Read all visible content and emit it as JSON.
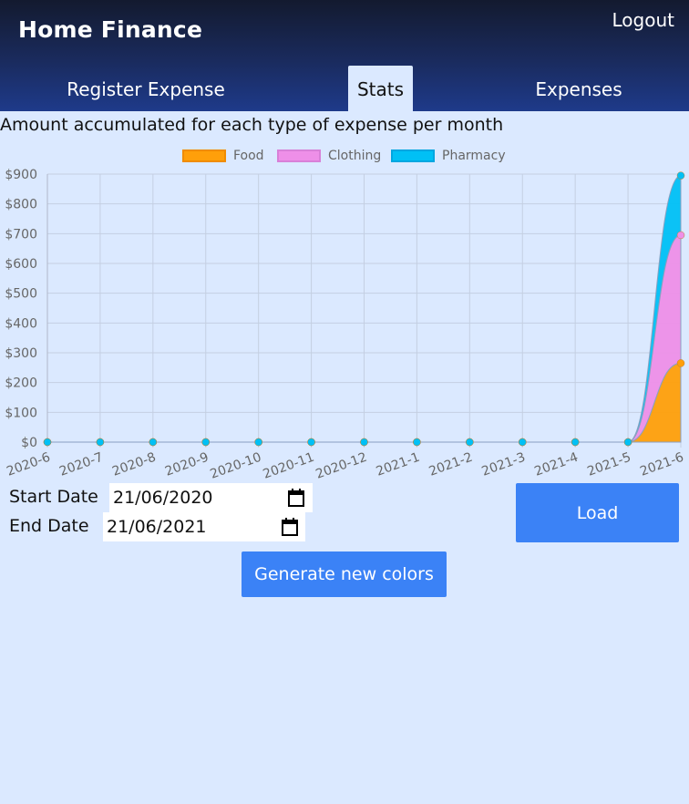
{
  "header": {
    "title": "Home Finance",
    "logout_label": "Logout"
  },
  "tabs": [
    {
      "label": "Register Expense",
      "active": false
    },
    {
      "label": "Stats",
      "active": true
    },
    {
      "label": "Expenses",
      "active": false
    }
  ],
  "chart_heading": "Amount accumulated for each type of expense per month",
  "colors": {
    "food": "#ff9f0a",
    "clothing": "#ee8fe8",
    "pharmacy": "#00c0f5",
    "accent": "#3b82f6"
  },
  "chart_data": {
    "type": "area",
    "stacked": true,
    "categories": [
      "2020-6",
      "2020-7",
      "2020-8",
      "2020-9",
      "2020-10",
      "2020-11",
      "2020-12",
      "2021-1",
      "2021-2",
      "2021-3",
      "2021-4",
      "2021-5",
      "2021-6"
    ],
    "series": [
      {
        "name": "Food",
        "values": [
          0,
          0,
          0,
          0,
          0,
          0,
          0,
          0,
          0,
          0,
          0,
          0,
          265
        ],
        "color": "#ff9f0a"
      },
      {
        "name": "Clothing",
        "values": [
          0,
          0,
          0,
          0,
          0,
          0,
          0,
          0,
          0,
          0,
          0,
          0,
          430
        ],
        "color": "#ee8fe8"
      },
      {
        "name": "Pharmacy",
        "values": [
          0,
          0,
          0,
          0,
          0,
          0,
          0,
          0,
          0,
          0,
          0,
          0,
          200
        ],
        "color": "#00c0f5"
      }
    ],
    "y_ticks": [
      "$0",
      "$100",
      "$200",
      "$300",
      "$400",
      "$500",
      "$600",
      "$700",
      "$800",
      "$900"
    ],
    "ylim": [
      0,
      900
    ],
    "grid": true,
    "legend": "top"
  },
  "form": {
    "start_label": "Start Date",
    "start_value": "21/06/2020",
    "end_label": "End Date",
    "end_value": "21/06/2021",
    "load_label": "Load",
    "colors_label": "Generate new colors"
  }
}
